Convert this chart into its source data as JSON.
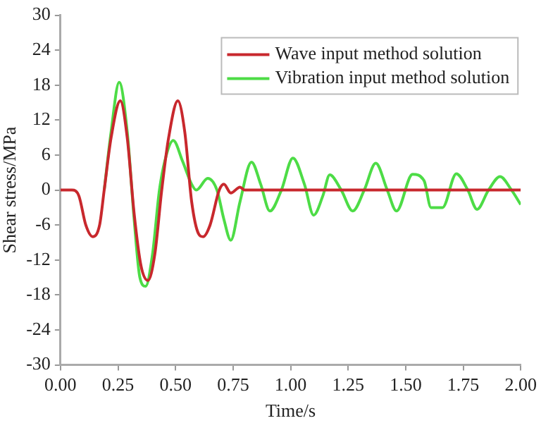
{
  "chart_data": {
    "type": "line",
    "xlabel": "Time/s",
    "ylabel": "Shear stress/MPa",
    "xlim": [
      0,
      2
    ],
    "ylim": [
      -30,
      30
    ],
    "xticks": [
      {
        "value": 0,
        "label": "0.00"
      },
      {
        "value": 0.25,
        "label": "0.25"
      },
      {
        "value": 0.5,
        "label": "0.50"
      },
      {
        "value": 0.75,
        "label": "0.75"
      },
      {
        "value": 1,
        "label": "1.00"
      },
      {
        "value": 1.25,
        "label": "1.25"
      },
      {
        "value": 1.5,
        "label": "1.50"
      },
      {
        "value": 1.75,
        "label": "1.75"
      },
      {
        "value": 2,
        "label": "2.00"
      }
    ],
    "yticks": [
      -30,
      -24,
      -18,
      -12,
      -6,
      0,
      6,
      12,
      18,
      24,
      30
    ],
    "grid": false,
    "legend": "top right",
    "marker": "none",
    "line_style": "solid",
    "series": [
      {
        "name": "Wave input method solution",
        "color": "#c8282d",
        "x": [
          0,
          0.05,
          0.08,
          0.11,
          0.14,
          0.17,
          0.19,
          0.22,
          0.26,
          0.29,
          0.32,
          0.35,
          0.38,
          0.41,
          0.44,
          0.47,
          0.51,
          0.54,
          0.57,
          0.6,
          0.62,
          0.65,
          0.69,
          0.71,
          0.74,
          0.78,
          0.8,
          1.0,
          1.5,
          2.0
        ],
        "values": [
          0,
          0,
          -1,
          -6,
          -8,
          -6,
          0,
          9,
          15.3,
          9,
          -4,
          -13,
          -15.5,
          -11,
          0,
          9,
          15.3,
          10,
          -2,
          -7.5,
          -8,
          -6,
          0,
          1,
          -0.5,
          0.5,
          0,
          0,
          0,
          0
        ]
      },
      {
        "name": "Vibration input method solution",
        "color": "#4ddc46",
        "x": [
          0.19,
          0.22,
          0.255,
          0.29,
          0.32,
          0.345,
          0.37,
          0.4,
          0.43,
          0.46,
          0.49,
          0.53,
          0.57,
          0.59,
          0.64,
          0.68,
          0.71,
          0.74,
          0.78,
          0.83,
          0.87,
          0.91,
          0.96,
          1.01,
          1.06,
          1.1,
          1.14,
          1.17,
          1.22,
          1.27,
          1.32,
          1.37,
          1.42,
          1.46,
          1.53,
          1.58,
          1.61,
          1.66,
          1.72,
          1.77,
          1.81,
          1.86,
          1.91,
          1.96,
          2.0
        ],
        "values": [
          0,
          10,
          18.5,
          10,
          -5,
          -15,
          -16.5,
          -11,
          0,
          6,
          8.5,
          5,
          1,
          0,
          2,
          0,
          -5,
          -8.6,
          -2,
          4.8,
          1,
          -3.6,
          0,
          5.5,
          1,
          -4.3,
          -1,
          2.6,
          0,
          -3.6,
          0,
          4.6,
          0,
          -3.6,
          2.7,
          1.6,
          -3,
          -3,
          2.8,
          0,
          -3.3,
          0,
          2.3,
          0,
          -2.5
        ]
      }
    ]
  }
}
